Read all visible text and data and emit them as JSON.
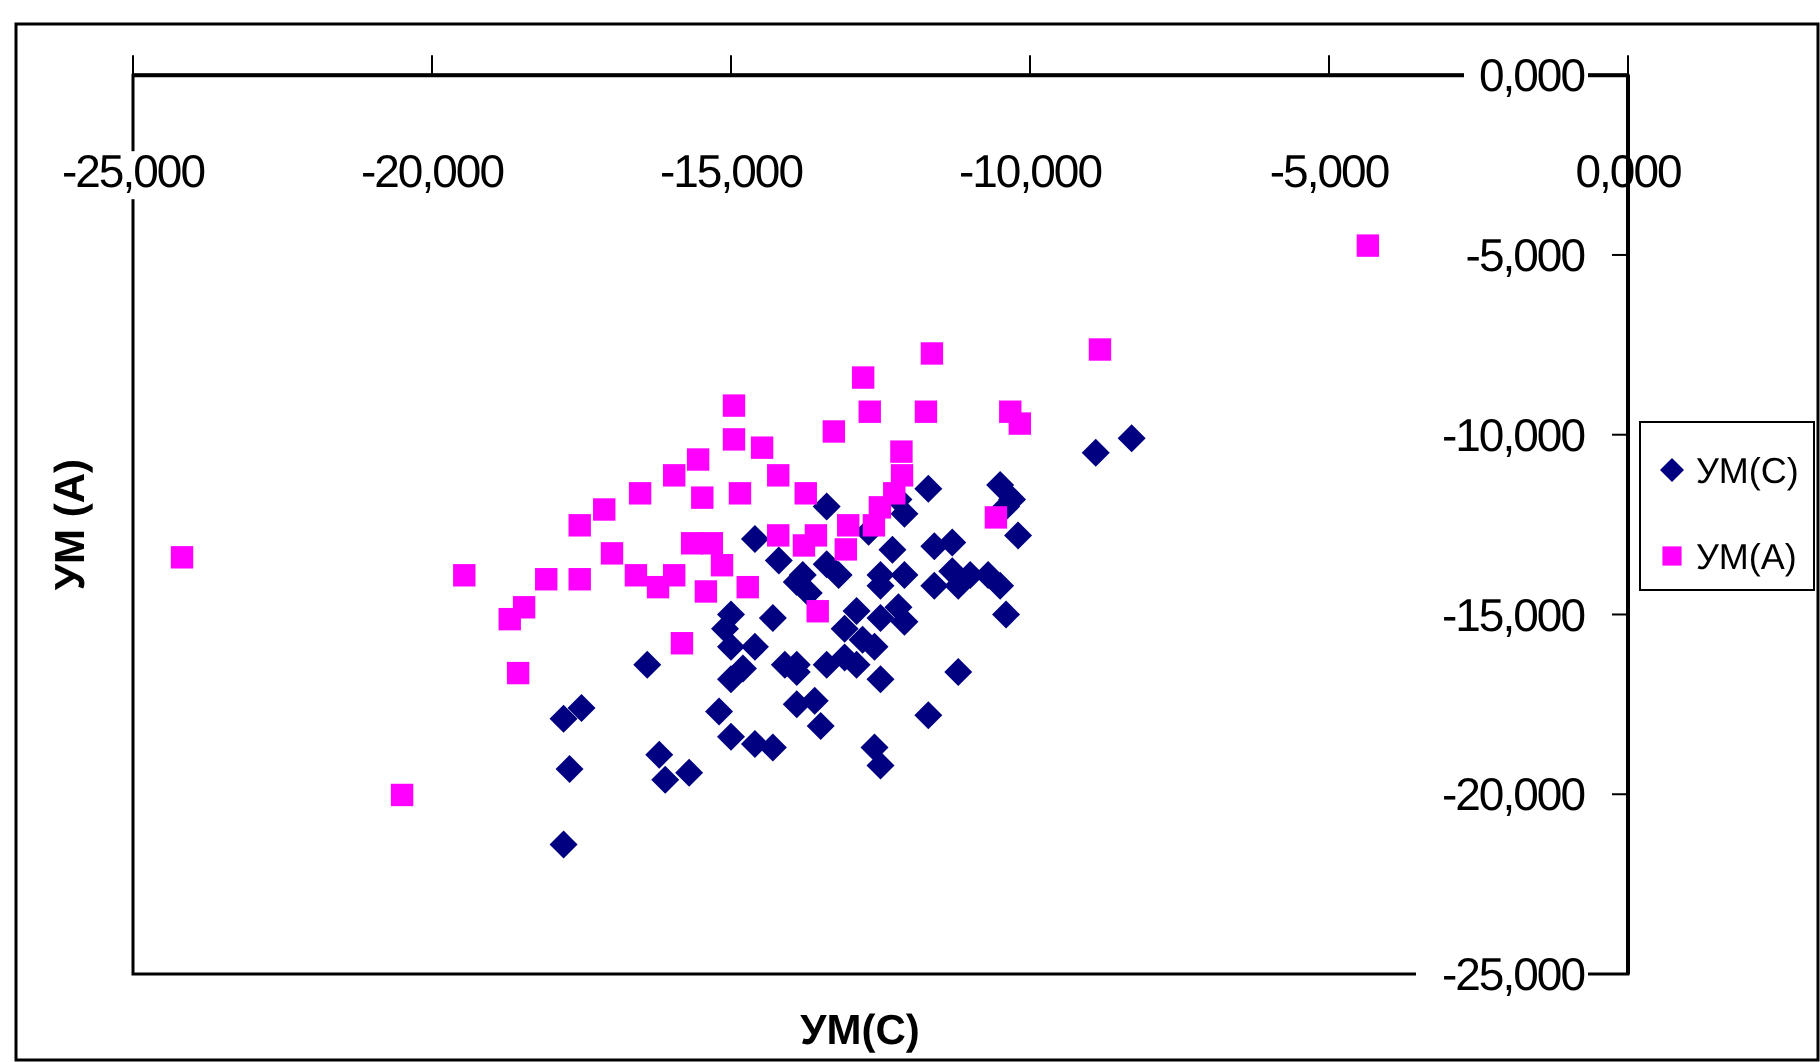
{
  "chart_data": {
    "type": "scatter",
    "xlabel": "УМ(С)",
    "ylabel": "УМ (А)",
    "legend": "right",
    "grid": false,
    "xlim": [
      -25,
      0
    ],
    "ylim": [
      -25,
      0
    ],
    "xticks": [
      {
        "value": -25,
        "label": "-25,000"
      },
      {
        "value": -20,
        "label": "-20,000"
      },
      {
        "value": -15,
        "label": "-15,000"
      },
      {
        "value": -10,
        "label": "-10,000"
      },
      {
        "value": -5,
        "label": "-5,000"
      },
      {
        "value": 0,
        "label": "0,000"
      }
    ],
    "yticks": [
      {
        "value": 0,
        "label": "0,000"
      },
      {
        "value": -5,
        "label": "-5,000"
      },
      {
        "value": -10,
        "label": "-10,000"
      },
      {
        "value": -15,
        "label": "-15,000"
      },
      {
        "value": -20,
        "label": "-20,000"
      },
      {
        "value": -25,
        "label": "-25,000"
      }
    ],
    "series": [
      {
        "name": "УМ(С)",
        "color": "#000080",
        "marker": "diamond",
        "x": [
          -8.3,
          -8.9,
          -11.7,
          -10.5,
          -10.3,
          -13.4,
          -12.1,
          -12.2,
          -10.4,
          -12.7,
          -10.2,
          -12.3,
          -11.6,
          -11.3,
          -14.6,
          -14.2,
          -13.9,
          -13.8,
          -13.7,
          -13.4,
          -13.2,
          -12.5,
          -12.5,
          -12.9,
          -12.5,
          -12.2,
          -12.1,
          -13.1,
          -12.8,
          -12.6,
          -13.1,
          -12.9,
          -13.4,
          -12.5,
          -12.1,
          -11.6,
          -11.3,
          -11.2,
          -11.0,
          -10.7,
          -10.5,
          -10.4,
          -11.2,
          -11.7,
          -14.3,
          -15.0,
          -15.1,
          -15.0,
          -14.6,
          -14.1,
          -13.9,
          -13.9,
          -14.8,
          -15.0,
          -16.4,
          -15.2,
          -15.0,
          -14.6,
          -14.3,
          -13.9,
          -13.6,
          -13.5,
          -12.6,
          -12.5,
          -17.5,
          -17.8,
          -16.2,
          -15.7,
          -16.1,
          -17.7,
          -17.8
        ],
        "values": [
          -10.1,
          -10.5,
          -11.5,
          -11.4,
          -11.8,
          -12.0,
          -12.2,
          -11.8,
          -12.0,
          -12.7,
          -12.8,
          -13.2,
          -13.1,
          -13.0,
          -12.9,
          -13.5,
          -14.1,
          -13.9,
          -14.4,
          -13.6,
          -13.9,
          -13.9,
          -14.2,
          -14.9,
          -15.1,
          -14.8,
          -15.2,
          -15.4,
          -15.7,
          -15.9,
          -16.2,
          -16.4,
          -16.4,
          -16.8,
          -13.9,
          -14.2,
          -13.8,
          -14.2,
          -13.9,
          -13.9,
          -14.2,
          -15.0,
          -16.6,
          -17.8,
          -15.1,
          -15.0,
          -15.4,
          -15.9,
          -15.9,
          -16.4,
          -16.4,
          -16.6,
          -16.5,
          -16.8,
          -16.4,
          -17.7,
          -18.4,
          -18.6,
          -18.7,
          -17.5,
          -17.4,
          -18.1,
          -18.7,
          -19.2,
          -17.6,
          -17.9,
          -18.9,
          -19.4,
          -19.6,
          -19.3,
          -21.4
        ]
      },
      {
        "name": "УМ(А)",
        "color": "#ff00ff",
        "marker": "square",
        "x": [
          -4.35,
          -8.83,
          -11.64,
          -12.79,
          -14.95,
          -12.68,
          -11.74,
          -10.33,
          -13.28,
          -10.17,
          -14.95,
          -14.48,
          -12.15,
          -15.55,
          -15.95,
          -14.21,
          -12.14,
          -16.52,
          -15.48,
          -14.85,
          -13.75,
          -12.27,
          -17.12,
          -12.51,
          -17.53,
          -13.04,
          -12.61,
          -15.65,
          -15.32,
          -14.21,
          -13.78,
          -13.58,
          -13.08,
          -10.57,
          -16.99,
          -15.15,
          -19.46,
          -18.09,
          -17.53,
          -16.59,
          -15.95,
          -16.22,
          -15.42,
          -14.72,
          -18.46,
          -18.7,
          -13.55,
          -15.82,
          -18.56,
          -20.5,
          -24.18
        ],
        "values": [
          -4.74,
          -7.63,
          -7.74,
          -8.41,
          -9.19,
          -9.36,
          -9.36,
          -9.36,
          -9.91,
          -9.69,
          -10.13,
          -10.36,
          -10.47,
          -10.69,
          -11.13,
          -11.13,
          -11.13,
          -11.63,
          -11.75,
          -11.63,
          -11.63,
          -11.63,
          -12.08,
          -12.02,
          -12.52,
          -12.52,
          -12.52,
          -13.02,
          -13.02,
          -12.8,
          -13.08,
          -12.8,
          -13.19,
          -12.3,
          -13.3,
          -13.63,
          -13.91,
          -14.02,
          -14.02,
          -13.91,
          -13.91,
          -14.24,
          -14.36,
          -14.24,
          -14.8,
          -15.13,
          -14.91,
          -15.8,
          -16.63,
          -20.02,
          -13.41
        ]
      }
    ]
  }
}
